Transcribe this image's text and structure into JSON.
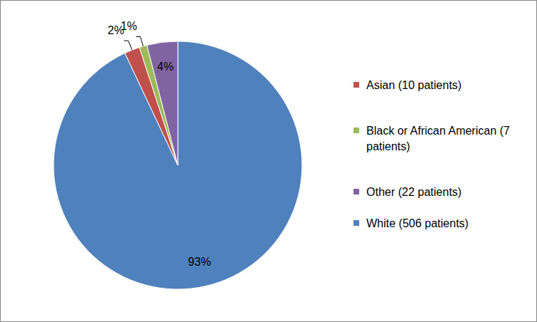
{
  "chart_data": {
    "type": "pie",
    "categories": [
      "White (506 patients)",
      "Asian (10 patients)",
      "Black or African American (7 patients)",
      "Other (22 patients)"
    ],
    "values": [
      93,
      2,
      1,
      4
    ],
    "value_labels": [
      "93%",
      "2%",
      "1%",
      "4%"
    ],
    "colors": [
      "#4f81bd",
      "#c0504d",
      "#9bbb59",
      "#8064a2"
    ],
    "data_labels": true,
    "legend": "right"
  }
}
